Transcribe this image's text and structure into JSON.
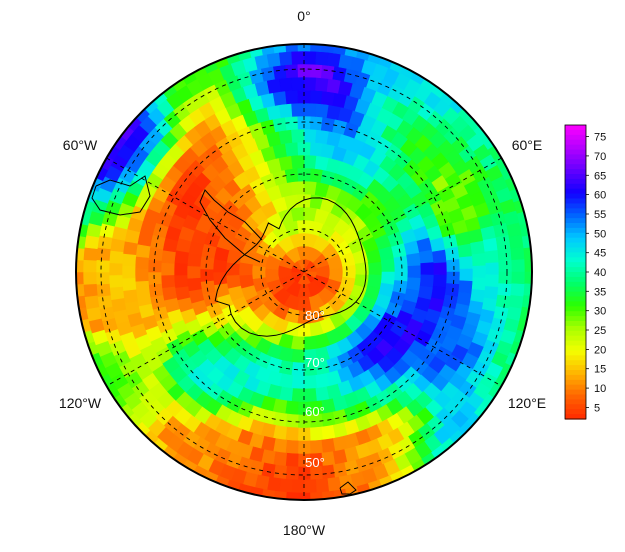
{
  "map": {
    "projection": "south polar stereographic",
    "colormap": [
      "#ff2a00",
      "#ff6400",
      "#ffb400",
      "#f4ff00",
      "#a8ff00",
      "#2bff00",
      "#00ff6a",
      "#00ffd0",
      "#00c8ff",
      "#0064ff",
      "#1200ff",
      "#6400ff",
      "#b400ff",
      "#ff00ff"
    ],
    "longitude_labels": {
      "top": "0°",
      "upper_left": "60°W",
      "upper_right": "60°E",
      "lower_left": "120°W",
      "lower_right": "120°E",
      "bottom": "180°W"
    },
    "latitude_labels": [
      "80°",
      "70°",
      "60°",
      "50°"
    ],
    "grid": "dashed",
    "coastline": "Antarctica and southern continents outline"
  },
  "colorbar": {
    "ticks": [
      "75",
      "70",
      "65",
      "60",
      "55",
      "50",
      "45",
      "40",
      "35",
      "30",
      "25",
      "20",
      "15",
      "10",
      "5"
    ],
    "min": 2,
    "max": 78
  }
}
